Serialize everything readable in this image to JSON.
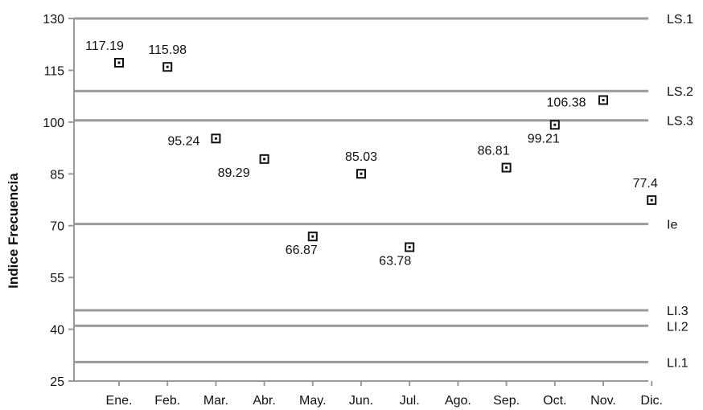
{
  "chart_data": {
    "type": "scatter",
    "ylabel": "Indice Frecuencia",
    "xlabel": "",
    "ylim": [
      25,
      130
    ],
    "yticks": [
      130,
      115,
      100,
      85,
      70,
      55,
      40,
      25
    ],
    "categories": [
      "Ene.",
      "Feb.",
      "Mar.",
      "Abr.",
      "May.",
      "Jun.",
      "Jul.",
      "Ago.",
      "Sep.",
      "Oct.",
      "Nov.",
      "Dic."
    ],
    "points": [
      {
        "x": "Ene.",
        "y": 117.19,
        "label": "117.19"
      },
      {
        "x": "Feb.",
        "y": 115.98,
        "label": "115.98"
      },
      {
        "x": "Mar.",
        "y": 95.24,
        "label": "95.24"
      },
      {
        "x": "Abr.",
        "y": 89.29,
        "label": "89.29"
      },
      {
        "x": "May.",
        "y": 66.87,
        "label": "66.87"
      },
      {
        "x": "Jun.",
        "y": 85.03,
        "label": "85.03"
      },
      {
        "x": "Jul.",
        "y": 63.78,
        "label": "63.78"
      },
      {
        "x": "Sep.",
        "y": 86.81,
        "label": "86.81"
      },
      {
        "x": "Oct.",
        "y": 99.21,
        "label": "99.21"
      },
      {
        "x": "Nov.",
        "y": 106.38,
        "label": "106.38"
      },
      {
        "x": "Dic.",
        "y": 77.4,
        "label": "77.4"
      }
    ],
    "reference_lines": [
      {
        "name": "LS.1",
        "y": 130
      },
      {
        "name": "LS.2",
        "y": 109
      },
      {
        "name": "LS.3",
        "y": 100.5
      },
      {
        "name": "Ie",
        "y": 70.5
      },
      {
        "name": "LI.3",
        "y": 45.5
      },
      {
        "name": "LI.2",
        "y": 41
      },
      {
        "name": "LI.1",
        "y": 30.5
      }
    ],
    "grid": false,
    "legend": "none",
    "colors": {
      "line": "#9a9a9a",
      "marker": "#111111",
      "text": "#111111"
    }
  }
}
